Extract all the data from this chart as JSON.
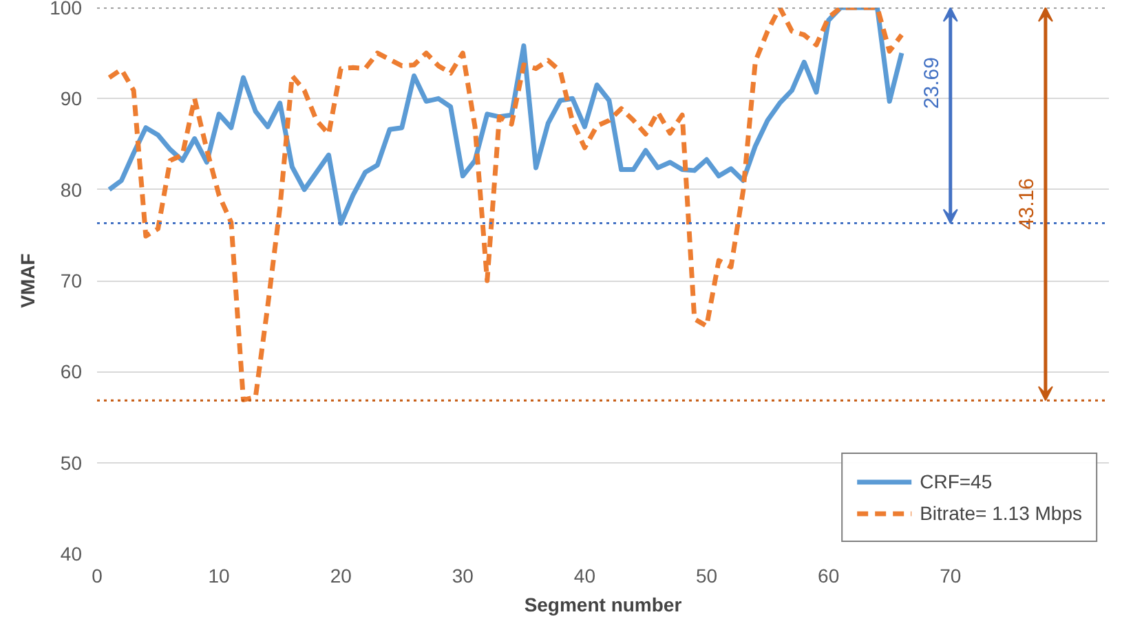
{
  "chart_data": {
    "type": "line",
    "xlabel": "Segment number",
    "ylabel": "VMAF",
    "x": [
      1,
      2,
      3,
      4,
      5,
      6,
      7,
      8,
      9,
      10,
      11,
      12,
      13,
      14,
      15,
      16,
      17,
      18,
      19,
      20,
      21,
      22,
      23,
      24,
      25,
      26,
      27,
      28,
      29,
      30,
      31,
      32,
      33,
      34,
      35,
      36,
      37,
      38,
      39,
      40,
      41,
      42,
      43,
      44,
      45,
      46,
      47,
      48,
      49,
      50,
      51,
      52,
      53,
      54,
      55,
      56,
      57,
      58,
      59,
      60,
      61,
      62,
      63,
      64,
      65,
      66
    ],
    "series": [
      {
        "name": "CRF=45",
        "color": "#5b9bd5",
        "line_style": "solid",
        "values": [
          80.0,
          81.0,
          84.0,
          86.8,
          86.0,
          84.4,
          83.2,
          85.6,
          83.0,
          88.3,
          86.8,
          92.3,
          88.6,
          86.9,
          89.5,
          82.5,
          80.0,
          81.9,
          83.8,
          76.3,
          79.4,
          81.9,
          82.7,
          86.6,
          86.8,
          92.5,
          89.7,
          90.0,
          89.1,
          81.5,
          83.2,
          88.3,
          88.0,
          88.2,
          95.8,
          82.4,
          87.3,
          89.8,
          90.0,
          86.9,
          91.5,
          89.8,
          82.2,
          82.2,
          84.3,
          82.4,
          83.0,
          82.2,
          82.1,
          83.3,
          81.5,
          82.3,
          81.0,
          84.8,
          87.6,
          89.5,
          90.9,
          94.0,
          90.7,
          98.6,
          100,
          100,
          100,
          100,
          89.7,
          95.0
        ]
      },
      {
        "name": "Bitrate= 1.13 Mbps",
        "color": "#ed7d31",
        "line_style": "dashed",
        "values": [
          92.3,
          93.2,
          90.9,
          74.9,
          75.7,
          83.2,
          83.8,
          90.0,
          84.4,
          79.4,
          76.4,
          56.9,
          57.2,
          67.2,
          78.0,
          92.5,
          90.9,
          87.6,
          86.1,
          93.3,
          93.4,
          93.3,
          95.0,
          94.3,
          93.6,
          93.7,
          95.0,
          93.6,
          92.8,
          95.0,
          86.9,
          70.0,
          88.0,
          87.2,
          93.7,
          93.3,
          94.2,
          93.0,
          87.5,
          84.6,
          87.0,
          87.6,
          88.9,
          87.6,
          86.1,
          88.5,
          86.2,
          88.2,
          65.8,
          65.0,
          72.2,
          71.5,
          79.9,
          94.1,
          97.4,
          100,
          97.4,
          97.0,
          95.9,
          98.9,
          100,
          100,
          100,
          100,
          95.2,
          97.0
        ]
      }
    ],
    "xlim": [
      0,
      83
    ],
    "ylim": [
      40,
      100
    ],
    "xticks": [
      0,
      10,
      20,
      30,
      40,
      50,
      60,
      70
    ],
    "yticks": [
      40,
      50,
      60,
      70,
      80,
      90,
      100
    ],
    "ref_lines": [
      {
        "axis": "y",
        "value": 100,
        "color": "#808080",
        "line_style": "dotted"
      },
      {
        "axis": "y",
        "value": 76.31,
        "color": "#4472c4",
        "line_style": "dotted"
      },
      {
        "axis": "y",
        "value": 56.84,
        "color": "#c55a11",
        "line_style": "dotted"
      }
    ],
    "annotations": [
      "23.69",
      "43.16"
    ],
    "grid": "y",
    "legend": "bottom right",
    "marker": "none"
  }
}
